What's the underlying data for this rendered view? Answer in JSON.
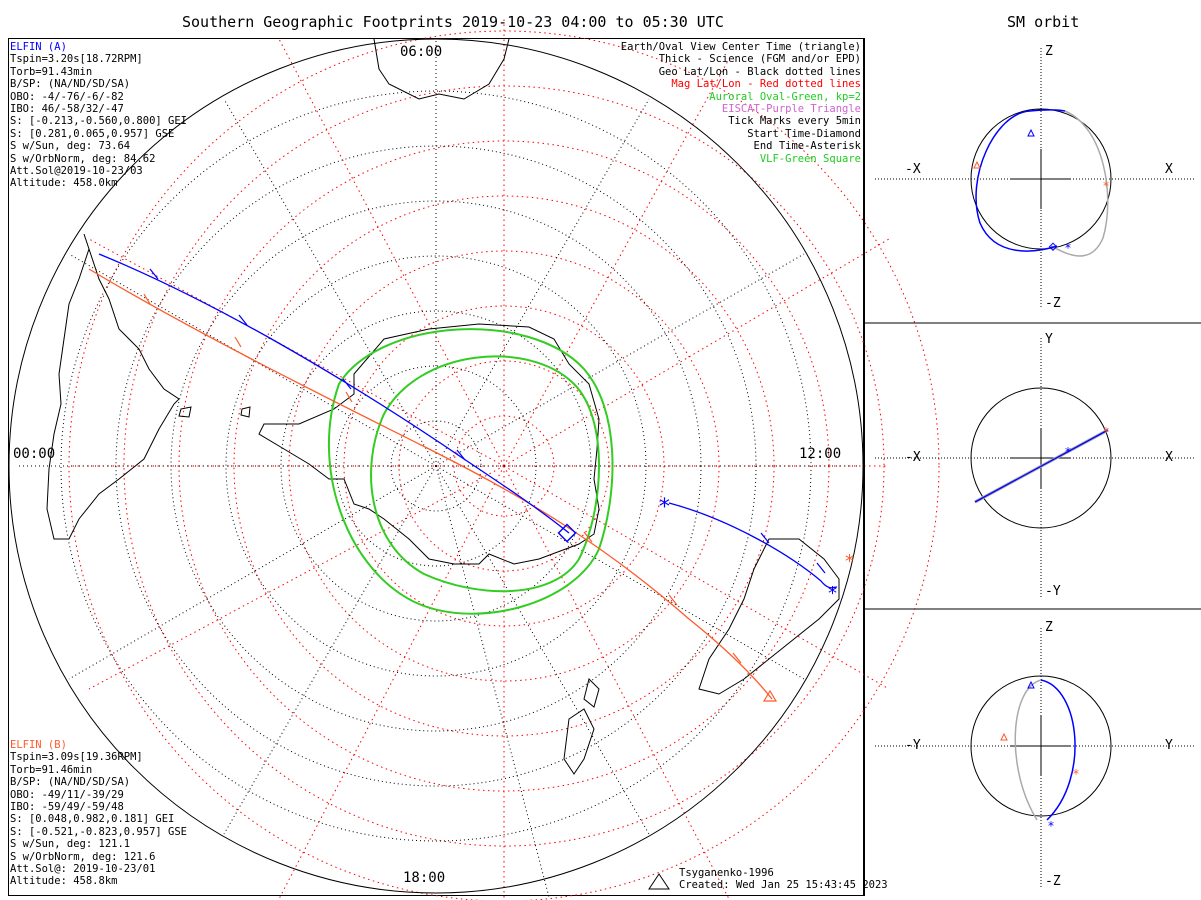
{
  "title": "Southern Geographic Footprints 2019-10-23 04:00 to 05:30 UTC",
  "orbit_title": "SM orbit",
  "hours": {
    "top": "06:00",
    "left": "00:00",
    "right": "12:00",
    "bottom": "18:00"
  },
  "elfin_a": {
    "header": "ELFIN (A)",
    "color": "#0000ff",
    "lines": [
      "Tspin=3.20s[18.72RPM]",
      "Torb=91.43min",
      "B/SP: (NA/ND/SD/SA)",
      "OBO: -4/-76/-6/-82",
      "IBO: 46/-58/32/-47",
      "S: [-0.213,-0.560,0.800] GEI",
      "S: [0.281,0.065,0.957] GSE",
      "S w/Sun, deg: 73.64",
      "S w/OrbNorm, deg: 84.62",
      "Att.Sol@2019-10-23/03",
      "Altitude: 458.0km"
    ]
  },
  "elfin_b": {
    "header": "ELFIN (B)",
    "color": "#ff5a2a",
    "lines": [
      "Tspin=3.09s[19.36RPM]",
      "Torb=91.46min",
      "B/SP: (NA/ND/SD/SA)",
      "OBO: -49/11/-39/29",
      "IBO: -59/49/-59/48",
      "S: [0.048,0.982,0.181] GEI",
      "S: [-0.521,-0.823,0.957] GSE",
      "S w/Sun, deg: 121.1",
      "S w/OrbNorm, deg: 121.6",
      "Att.Sol@: 2019-10-23/01",
      "Altitude: 458.8km"
    ]
  },
  "legend": [
    {
      "text": "Earth/Oval View Center Time (triangle)",
      "color": "#000000"
    },
    {
      "text": "Thick - Science (FGM and/or EPD)",
      "color": "#000000"
    },
    {
      "text": "Geo Lat/Lon - Black dotted lines",
      "color": "#000000"
    },
    {
      "text": "Mag Lat/Lon - Red dotted lines",
      "color": "#ff0000"
    },
    {
      "text": "Auroral Oval-Green, kp=2",
      "color": "#22cc22"
    },
    {
      "text": "EISCAT-Purple Triangle",
      "color": "#cc66cc"
    },
    {
      "text": "Tick Marks every 5min",
      "color": "#000000"
    },
    {
      "text": "Start Time-Diamond",
      "color": "#000000"
    },
    {
      "text": "End Time-Asterisk",
      "color": "#000000"
    },
    {
      "text": "VLF-Green Square",
      "color": "#22cc22"
    }
  ],
  "footer": {
    "model": "Tsyganenko-1996",
    "created": "Created: Wed Jan 25 15:43:45 2023"
  },
  "orbit_panels": [
    {
      "top": "Z",
      "bottom": "-Z",
      "left": "-X",
      "right": "X"
    },
    {
      "top": "Y",
      "bottom": "-Y",
      "left": "-X",
      "right": "X"
    },
    {
      "top": "Z",
      "bottom": "-Z",
      "left": "-Y",
      "right": "Y"
    }
  ],
  "colors": {
    "elfin_a": "#0000ff",
    "elfin_b": "#ff5a2a",
    "auroral_oval": "#33cc22",
    "mag_grid": "#ff0000",
    "orbit_gray": "#aaaaaa"
  }
}
